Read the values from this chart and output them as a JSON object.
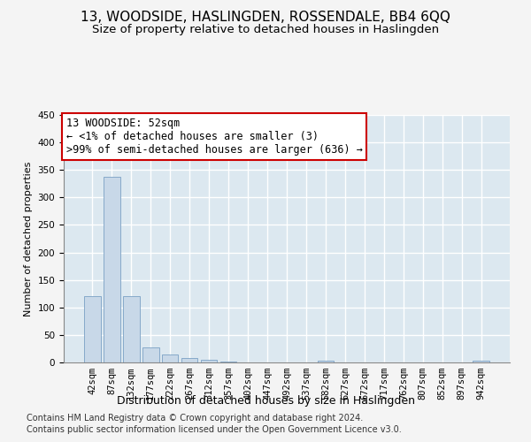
{
  "title": "13, WOODSIDE, HASLINGDEN, ROSSENDALE, BB4 6QQ",
  "subtitle": "Size of property relative to detached houses in Haslingden",
  "xlabel": "Distribution of detached houses by size in Haslingden",
  "ylabel": "Number of detached properties",
  "categories": [
    "42sqm",
    "87sqm",
    "132sqm",
    "177sqm",
    "222sqm",
    "267sqm",
    "312sqm",
    "357sqm",
    "402sqm",
    "447sqm",
    "492sqm",
    "537sqm",
    "582sqm",
    "627sqm",
    "672sqm",
    "717sqm",
    "762sqm",
    "807sqm",
    "852sqm",
    "897sqm",
    "942sqm"
  ],
  "values": [
    120,
    338,
    120,
    28,
    14,
    8,
    5,
    2,
    0,
    0,
    0,
    0,
    4,
    0,
    0,
    0,
    0,
    0,
    0,
    0,
    4
  ],
  "bar_color": "#c8d8e8",
  "bar_edge_color": "#7aa0c4",
  "annotation_box_text": "13 WOODSIDE: 52sqm\n← <1% of detached houses are smaller (3)\n>99% of semi-detached houses are larger (636) →",
  "annotation_box_color": "#ffffff",
  "annotation_box_edge_color": "#cc0000",
  "ylim": [
    0,
    450
  ],
  "yticks": [
    0,
    50,
    100,
    150,
    200,
    250,
    300,
    350,
    400,
    450
  ],
  "footnote1": "Contains HM Land Registry data © Crown copyright and database right 2024.",
  "footnote2": "Contains public sector information licensed under the Open Government Licence v3.0.",
  "background_color": "#dce8f0",
  "grid_color": "#ffffff",
  "fig_background": "#f4f4f4",
  "title_fontsize": 11,
  "subtitle_fontsize": 9.5,
  "xlabel_fontsize": 9,
  "ylabel_fontsize": 8,
  "tick_fontsize": 7.5,
  "annotation_fontsize": 8.5,
  "footnote_fontsize": 7
}
